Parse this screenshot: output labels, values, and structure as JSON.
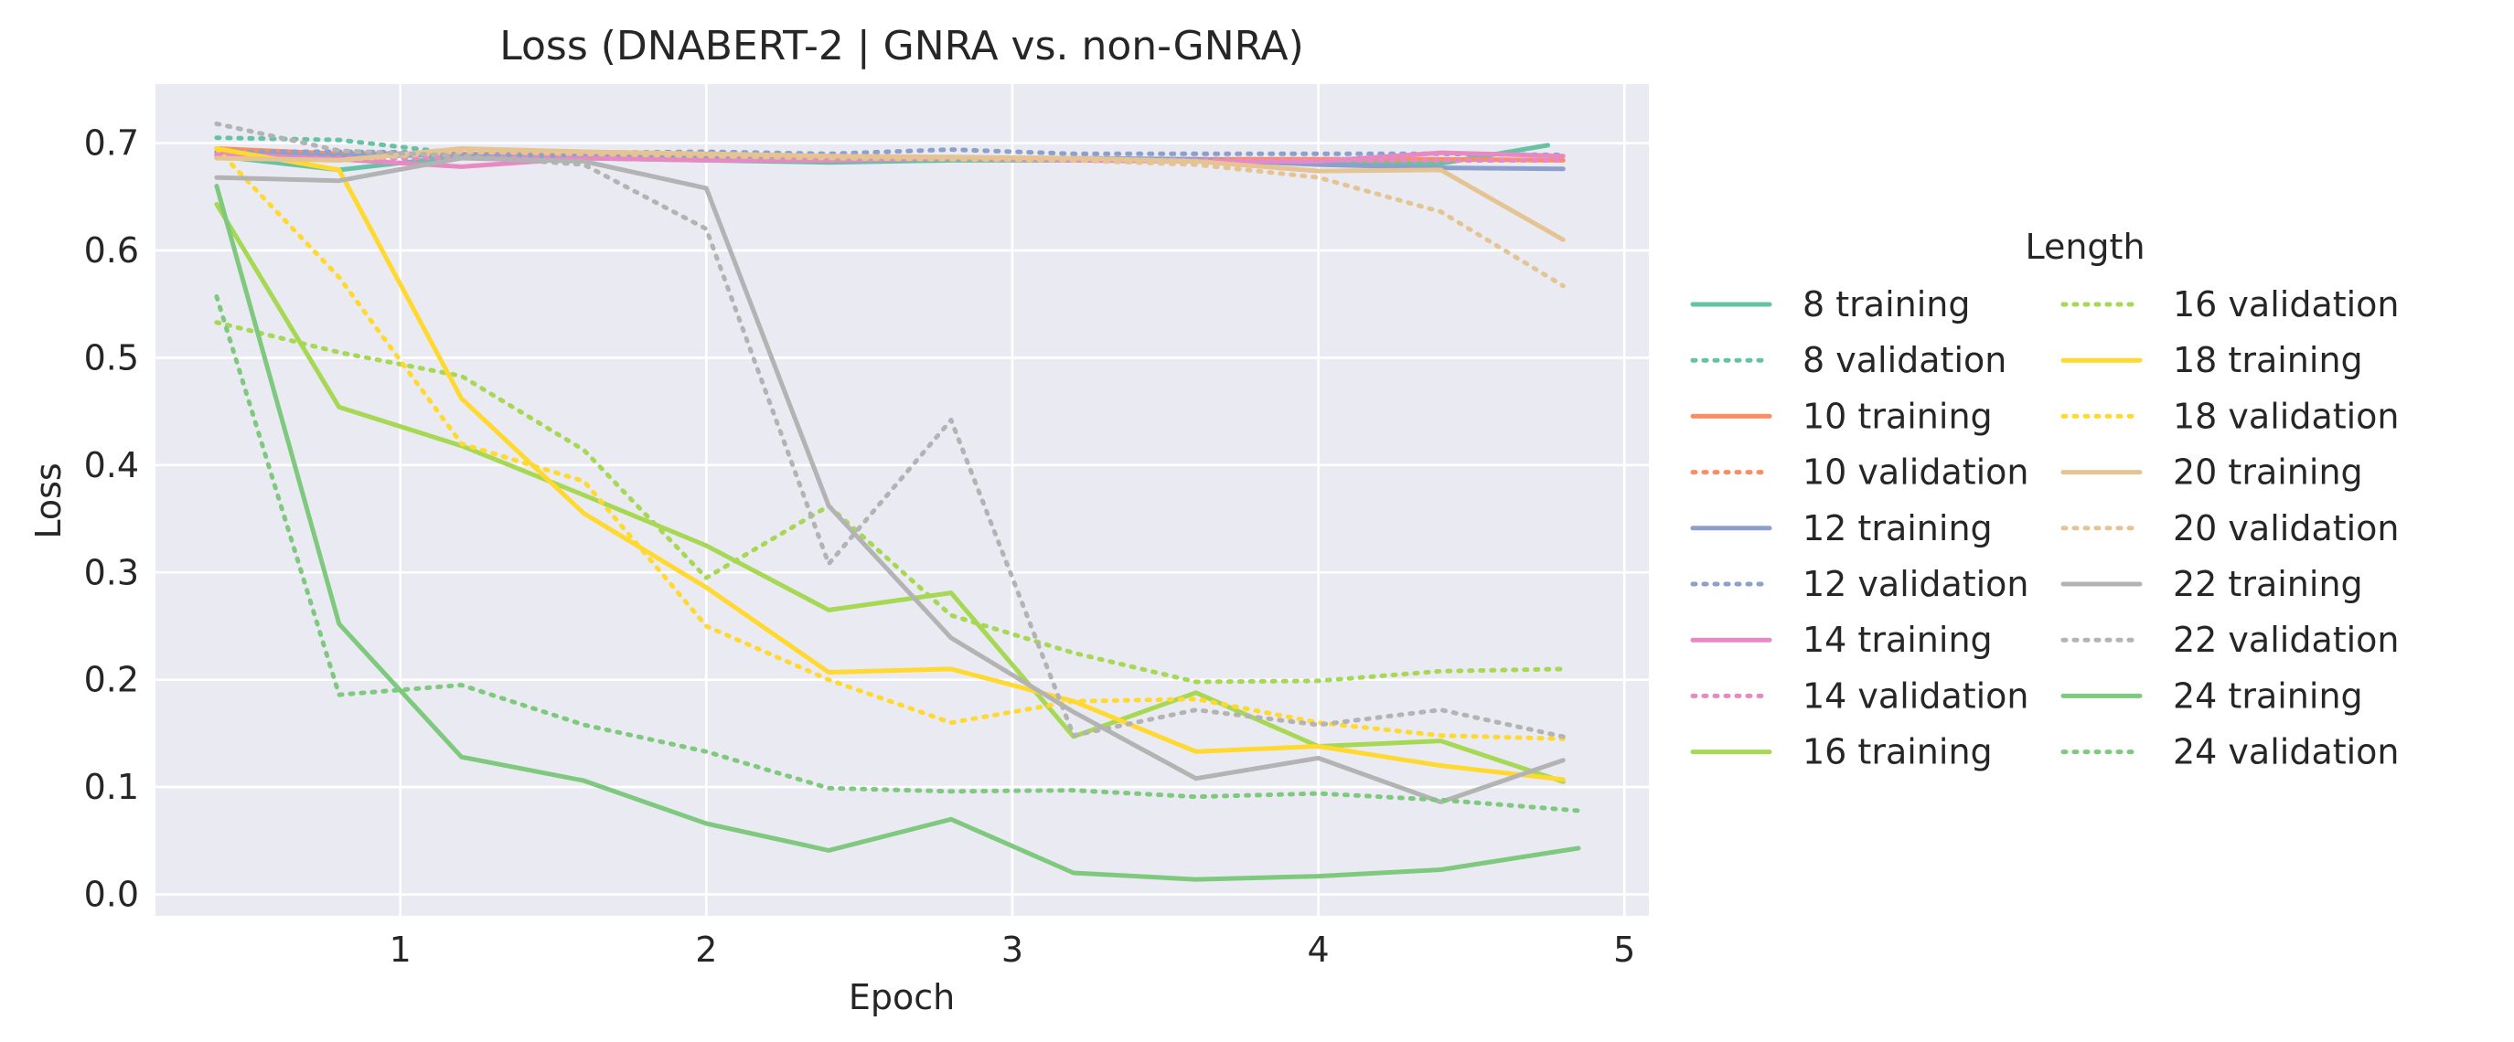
{
  "chart_data": {
    "type": "line",
    "title": "Loss (DNABERT-2 | GNRA vs. non-GNRA)",
    "xlabel": "Epoch",
    "ylabel": "Loss",
    "xlim": [
      0.2,
      5.08
    ],
    "ylim": [
      -0.02,
      0.755
    ],
    "xticks": [
      1,
      2,
      3,
      4,
      5
    ],
    "yticks": [
      0.0,
      0.1,
      0.2,
      0.3,
      0.4,
      0.5,
      0.6,
      0.7
    ],
    "ytick_labels": [
      "0.0",
      "0.1",
      "0.2",
      "0.3",
      "0.4",
      "0.5",
      "0.6",
      "0.7"
    ],
    "grid": true,
    "legend": {
      "title": "Length",
      "placement": "right",
      "columns": 2
    },
    "series": [
      {
        "name": "8 training",
        "color": "#66c2a5",
        "dash": "solid",
        "x": [
          0.4,
          0.8,
          1.2,
          1.6,
          2.0,
          2.4,
          2.8,
          3.2,
          3.6,
          4.0,
          4.4,
          4.75
        ],
        "y": [
          0.688,
          0.675,
          0.688,
          0.686,
          0.684,
          0.682,
          0.684,
          0.684,
          0.684,
          0.683,
          0.681,
          0.698
        ]
      },
      {
        "name": "8 validation",
        "color": "#66c2a5",
        "dash": "dotted",
        "x": [
          0.4,
          0.8,
          1.2,
          1.6,
          2.0,
          2.4,
          2.8,
          3.2,
          3.6,
          4.0,
          4.4,
          4.75
        ],
        "y": [
          0.705,
          0.703,
          0.69,
          0.688,
          0.686,
          0.685,
          0.686,
          0.685,
          0.685,
          0.684,
          0.684,
          0.684
        ]
      },
      {
        "name": "10 training",
        "color": "#fc8d62",
        "dash": "solid",
        "x": [
          0.4,
          0.8,
          1.2,
          1.6,
          2.0,
          2.4,
          2.8,
          3.2,
          3.6,
          4.0,
          4.4,
          4.8
        ],
        "y": [
          0.695,
          0.69,
          0.69,
          0.689,
          0.687,
          0.686,
          0.686,
          0.685,
          0.685,
          0.685,
          0.685,
          0.684
        ]
      },
      {
        "name": "10 validation",
        "color": "#fc8d62",
        "dash": "dotted",
        "x": [
          0.4,
          0.8,
          1.2,
          1.6,
          2.0,
          2.4,
          2.8,
          3.2,
          3.6,
          4.0,
          4.4,
          4.8
        ],
        "y": [
          0.69,
          0.689,
          0.689,
          0.688,
          0.687,
          0.686,
          0.686,
          0.685,
          0.685,
          0.685,
          0.684,
          0.684
        ]
      },
      {
        "name": "12 training",
        "color": "#8da0cb",
        "dash": "solid",
        "x": [
          0.4,
          0.8,
          1.2,
          1.6,
          2.0,
          2.4,
          2.8,
          3.2,
          3.6,
          4.0,
          4.4,
          4.8
        ],
        "y": [
          0.69,
          0.688,
          0.689,
          0.688,
          0.687,
          0.687,
          0.686,
          0.686,
          0.685,
          0.68,
          0.677,
          0.676
        ]
      },
      {
        "name": "12 validation",
        "color": "#8da0cb",
        "dash": "dotted",
        "x": [
          0.4,
          0.8,
          1.2,
          1.6,
          2.0,
          2.4,
          2.8,
          3.2,
          3.6,
          4.0,
          4.4,
          4.8
        ],
        "y": [
          0.692,
          0.692,
          0.691,
          0.691,
          0.692,
          0.69,
          0.694,
          0.69,
          0.69,
          0.69,
          0.69,
          0.689
        ]
      },
      {
        "name": "14 training",
        "color": "#e78ac3",
        "dash": "solid",
        "x": [
          0.4,
          0.8,
          1.2,
          1.6,
          2.0,
          2.4,
          2.8,
          3.2,
          3.6,
          4.0,
          4.4,
          4.8
        ],
        "y": [
          0.69,
          0.685,
          0.678,
          0.686,
          0.684,
          0.684,
          0.686,
          0.684,
          0.683,
          0.683,
          0.691,
          0.688
        ]
      },
      {
        "name": "14 validation",
        "color": "#e78ac3",
        "dash": "dotted",
        "x": [
          0.4,
          0.8,
          1.2,
          1.6,
          2.0,
          2.4,
          2.8,
          3.2,
          3.6,
          4.0,
          4.4,
          4.8
        ],
        "y": [
          0.688,
          0.686,
          0.686,
          0.687,
          0.686,
          0.685,
          0.685,
          0.685,
          0.684,
          0.684,
          0.684,
          0.684
        ]
      },
      {
        "name": "16 training",
        "color": "#a6d854",
        "dash": "solid",
        "x": [
          0.4,
          0.8,
          1.2,
          1.6,
          2.0,
          2.4,
          2.8,
          3.2,
          3.6,
          4.0,
          4.4,
          4.8
        ],
        "y": [
          0.643,
          0.454,
          0.418,
          0.372,
          0.325,
          0.265,
          0.281,
          0.147,
          0.188,
          0.138,
          0.143,
          0.105
        ]
      },
      {
        "name": "16 validation",
        "color": "#a6d854",
        "dash": "dotted",
        "x": [
          0.4,
          0.8,
          1.2,
          1.6,
          2.0,
          2.4,
          2.8,
          3.2,
          3.6,
          4.0,
          4.4,
          4.8
        ],
        "y": [
          0.533,
          0.505,
          0.483,
          0.414,
          0.295,
          0.362,
          0.26,
          0.225,
          0.198,
          0.199,
          0.208,
          0.21
        ]
      },
      {
        "name": "18 training",
        "color": "#ffd92f",
        "dash": "solid",
        "x": [
          0.4,
          0.8,
          1.2,
          1.6,
          2.0,
          2.4,
          2.8,
          3.2,
          3.6,
          4.0,
          4.4,
          4.8
        ],
        "y": [
          0.695,
          0.675,
          0.462,
          0.355,
          0.286,
          0.207,
          0.21,
          0.18,
          0.133,
          0.138,
          0.12,
          0.107
        ]
      },
      {
        "name": "18 validation",
        "color": "#ffd92f",
        "dash": "dotted",
        "x": [
          0.4,
          0.8,
          1.2,
          1.6,
          2.0,
          2.4,
          2.8,
          3.2,
          3.6,
          4.0,
          4.4,
          4.8
        ],
        "y": [
          0.695,
          0.575,
          0.42,
          0.385,
          0.25,
          0.2,
          0.16,
          0.18,
          0.182,
          0.16,
          0.148,
          0.145
        ]
      },
      {
        "name": "20 training",
        "color": "#e5c494",
        "dash": "solid",
        "x": [
          0.4,
          0.8,
          1.2,
          1.6,
          2.0,
          2.4,
          2.8,
          3.2,
          3.6,
          4.0,
          4.4,
          4.8
        ],
        "y": [
          0.686,
          0.684,
          0.695,
          0.692,
          0.69,
          0.688,
          0.687,
          0.686,
          0.683,
          0.674,
          0.675,
          0.61
        ]
      },
      {
        "name": "20 validation",
        "color": "#e5c494",
        "dash": "dotted",
        "x": [
          0.4,
          0.8,
          1.2,
          1.6,
          2.0,
          2.4,
          2.8,
          3.2,
          3.6,
          4.0,
          4.4,
          4.8
        ],
        "y": [
          0.686,
          0.684,
          0.692,
          0.69,
          0.688,
          0.686,
          0.685,
          0.684,
          0.68,
          0.668,
          0.636,
          0.567
        ]
      },
      {
        "name": "22 training",
        "color": "#b3b3b3",
        "dash": "solid",
        "x": [
          0.4,
          0.8,
          1.2,
          1.6,
          2.0,
          2.4,
          2.8,
          3.2,
          3.6,
          4.0,
          4.4,
          4.8
        ],
        "y": [
          0.668,
          0.665,
          0.686,
          0.683,
          0.658,
          0.362,
          0.239,
          0.17,
          0.108,
          0.127,
          0.086,
          0.125
        ]
      },
      {
        "name": "22 validation",
        "color": "#b3b3b3",
        "dash": "dotted",
        "x": [
          0.4,
          0.8,
          1.2,
          1.6,
          2.0,
          2.4,
          2.8,
          3.2,
          3.6,
          4.0,
          4.4,
          4.8
        ],
        "y": [
          0.718,
          0.693,
          0.688,
          0.68,
          0.62,
          0.308,
          0.442,
          0.148,
          0.172,
          0.158,
          0.172,
          0.147
        ]
      },
      {
        "name": "24 training",
        "color": "#7fc97f",
        "dash": "solid",
        "x": [
          0.4,
          0.8,
          1.2,
          1.6,
          2.0,
          2.4,
          2.8,
          3.2,
          3.6,
          4.0,
          4.4,
          4.85
        ],
        "y": [
          0.66,
          0.252,
          0.128,
          0.106,
          0.066,
          0.041,
          0.07,
          0.02,
          0.014,
          0.017,
          0.023,
          0.043
        ]
      },
      {
        "name": "24 validation",
        "color": "#7fc97f",
        "dash": "dotted",
        "x": [
          0.4,
          0.8,
          1.2,
          1.6,
          2.0,
          2.4,
          2.8,
          3.2,
          3.6,
          4.0,
          4.4,
          4.85
        ],
        "y": [
          0.557,
          0.186,
          0.195,
          0.158,
          0.133,
          0.099,
          0.096,
          0.097,
          0.091,
          0.094,
          0.088,
          0.078
        ]
      }
    ]
  }
}
